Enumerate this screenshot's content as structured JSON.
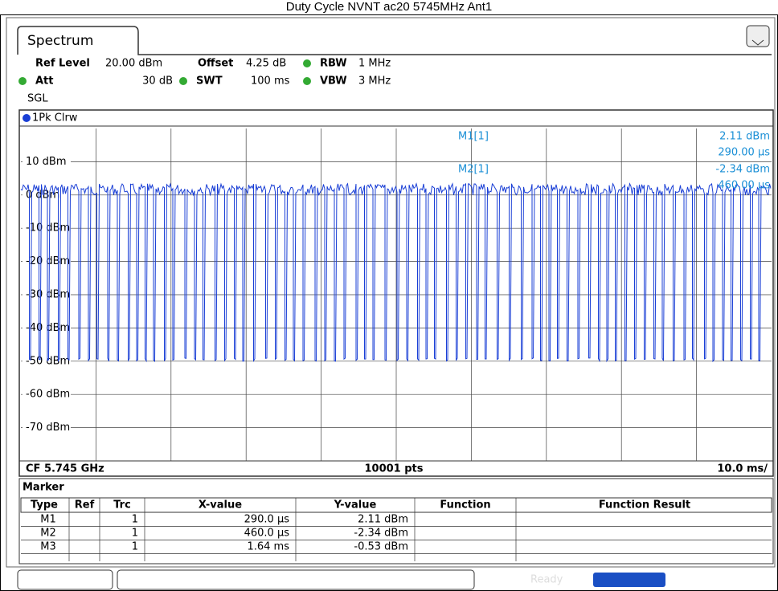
{
  "title": "Duty Cycle NVNT ac20 5745MHz Ant1",
  "tab": "Spectrum",
  "settings": {
    "ref_level_label": "Ref Level",
    "ref_level": "20.00 dBm",
    "offset_label": "Offset",
    "offset": "4.25 dB",
    "rbw_label": "RBW",
    "rbw": "1 MHz",
    "att_label": "Att",
    "att": "30 dB",
    "swt_label": "SWT",
    "swt": "100 ms",
    "vbw_label": "VBW",
    "vbw": "3 MHz",
    "mode": "SGL"
  },
  "trace_label": "1Pk Clrw",
  "y_labels": [
    "10 dBm",
    "0 dBm",
    "-10 dBm",
    "-20 dBm",
    "-30 dBm",
    "-40 dBm",
    "-50 dBm",
    "-60 dBm",
    "-70 dBm"
  ],
  "readout": {
    "m1_label": "M1[1]",
    "m1_y": "2.11 dBm",
    "m1_x": "290.00 µs",
    "m2_label": "M2[1]",
    "m2_y": "-2.34 dBm",
    "m2_x": "460.00 µs"
  },
  "footer": {
    "center_freq": "CF 5.745 GHz",
    "points": "10001 pts",
    "scale": "10.0 ms/"
  },
  "marker_table": {
    "title": "Marker",
    "headers": [
      "Type",
      "Ref",
      "Trc",
      "X-value",
      "Y-value",
      "Function",
      "Function Result"
    ],
    "rows": [
      [
        "M1",
        "",
        "1",
        "290.0 µs",
        "2.11 dBm",
        "",
        ""
      ],
      [
        "M2",
        "",
        "1",
        "460.0 µs",
        "-2.34 dBm",
        "",
        ""
      ],
      [
        "M3",
        "",
        "1",
        "1.64 ms",
        "-0.53 dBm",
        "",
        ""
      ]
    ]
  },
  "status": "Ready"
}
